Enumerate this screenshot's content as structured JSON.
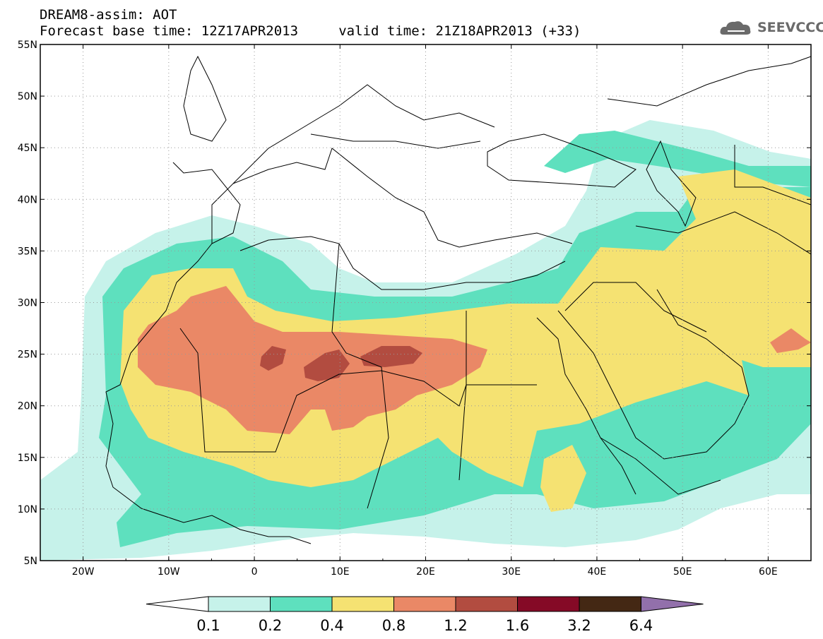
{
  "header": {
    "line1": "DREAM8-assim: AOT",
    "line2": "Forecast base time: 12Z17APR2013     valid time: 21Z18APR2013 (+33)"
  },
  "logo": {
    "text": "SEEVCCC",
    "icon": "cloud-icon",
    "color": "#6a6a6a"
  },
  "map": {
    "lon_range": [
      -25,
      65
    ],
    "lat_range": [
      5,
      55
    ],
    "lon_ticks": [
      {
        "value": -20,
        "label": "20W"
      },
      {
        "value": -10,
        "label": "10W"
      },
      {
        "value": 0,
        "label": "0"
      },
      {
        "value": 10,
        "label": "10E"
      },
      {
        "value": 20,
        "label": "20E"
      },
      {
        "value": 30,
        "label": "30E"
      },
      {
        "value": 40,
        "label": "40E"
      },
      {
        "value": 50,
        "label": "50E"
      },
      {
        "value": 60,
        "label": "60E"
      }
    ],
    "lat_ticks": [
      {
        "value": 5,
        "label": "5N"
      },
      {
        "value": 10,
        "label": "10N"
      },
      {
        "value": 15,
        "label": "15N"
      },
      {
        "value": 20,
        "label": "20N"
      },
      {
        "value": 25,
        "label": "25N"
      },
      {
        "value": 30,
        "label": "30N"
      },
      {
        "value": 35,
        "label": "35N"
      },
      {
        "value": 40,
        "label": "40N"
      },
      {
        "value": 45,
        "label": "45N"
      },
      {
        "value": 50,
        "label": "50N"
      },
      {
        "value": 55,
        "label": "55N"
      }
    ],
    "grid": true
  },
  "colorbar": {
    "labels": [
      "0.1",
      "0.2",
      "0.4",
      "0.8",
      "1.2",
      "1.6",
      "3.2",
      "6.4"
    ],
    "colors": [
      "#ffffff",
      "#c6f2ea",
      "#5ee0be",
      "#f5e272",
      "#ea8866",
      "#b24c40",
      "#850a26",
      "#442814",
      "#9270ab"
    ]
  },
  "palette": {
    "c1": "#c6f2ea",
    "c2": "#5ee0be",
    "c3": "#f5e272",
    "c4": "#ea8866",
    "c5": "#b24c40"
  }
}
